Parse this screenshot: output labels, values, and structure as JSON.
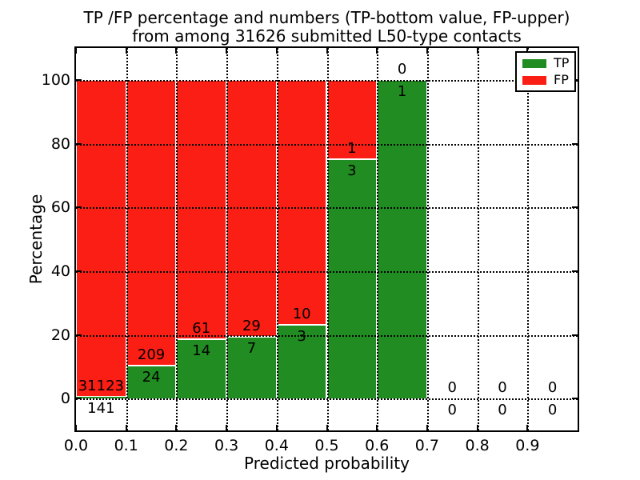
{
  "title": {
    "line1": "TP /FP percentage and numbers (TP-bottom value, FP-upper)",
    "line2": "from among 31626 submitted L50-type contacts"
  },
  "chart_data": {
    "type": "bar",
    "stacked": true,
    "orientation": "vertical",
    "xlabel": "Predicted probability",
    "ylabel": "Percentage",
    "xlim": [
      0.0,
      1.0
    ],
    "ylim": [
      -10,
      110
    ],
    "x_tick_values": [
      0.0,
      0.1,
      0.2,
      0.3,
      0.4,
      0.5,
      0.6,
      0.7,
      0.8,
      0.9
    ],
    "x_tick_labels": [
      "0.0",
      "0.1",
      "0.2",
      "0.3",
      "0.4",
      "0.5",
      "0.6",
      "0.7",
      "0.8",
      "0.9"
    ],
    "y_tick_values": [
      0,
      20,
      40,
      60,
      80,
      100
    ],
    "y_tick_labels": [
      "0",
      "20",
      "40",
      "60",
      "80",
      "100"
    ],
    "grid": {
      "style": "dotted",
      "color": "#000000",
      "on": true
    },
    "submitted_total": 31626,
    "colors": {
      "tp": "#218c21",
      "fp": "#fa1e14",
      "bar_edge": "#ffffff"
    },
    "legend": {
      "position": "upper-right",
      "entries": [
        {
          "label": "TP",
          "color": "#218c21"
        },
        {
          "label": "FP",
          "color": "#fa1e14"
        }
      ]
    },
    "bins": [
      {
        "x_start": 0.0,
        "x_end": 0.1,
        "tp": 141,
        "fp": 31123,
        "tp_pct": 0.45
      },
      {
        "x_start": 0.1,
        "x_end": 0.2,
        "tp": 24,
        "fp": 209,
        "tp_pct": 10.3
      },
      {
        "x_start": 0.2,
        "x_end": 0.3,
        "tp": 14,
        "fp": 61,
        "tp_pct": 18.67
      },
      {
        "x_start": 0.3,
        "x_end": 0.4,
        "tp": 7,
        "fp": 29,
        "tp_pct": 19.44
      },
      {
        "x_start": 0.4,
        "x_end": 0.5,
        "tp": 3,
        "fp": 10,
        "tp_pct": 23.08
      },
      {
        "x_start": 0.5,
        "x_end": 0.6,
        "tp": 3,
        "fp": 1,
        "tp_pct": 75.0
      },
      {
        "x_start": 0.6,
        "x_end": 0.7,
        "tp": 1,
        "fp": 0,
        "tp_pct": 100.0
      },
      {
        "x_start": 0.7,
        "x_end": 0.8,
        "tp": 0,
        "fp": 0,
        "tp_pct": 0.0
      },
      {
        "x_start": 0.8,
        "x_end": 0.9,
        "tp": 0,
        "fp": 0,
        "tp_pct": 0.0
      },
      {
        "x_start": 0.9,
        "x_end": 1.0,
        "tp": 0,
        "fp": 0,
        "tp_pct": 0.0
      }
    ]
  }
}
